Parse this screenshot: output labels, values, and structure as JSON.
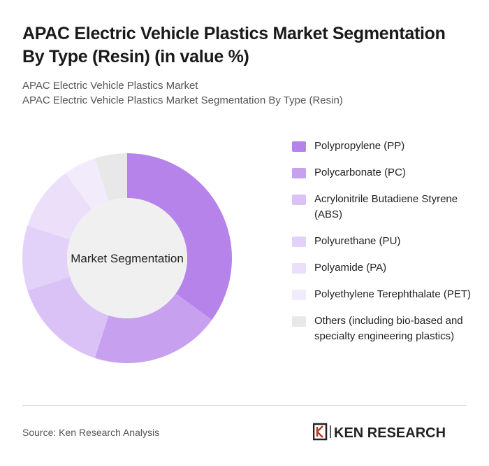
{
  "chart_data": {
    "type": "donut",
    "title": "APAC Electric Vehicle Plastics Market Segmentation By Type (Resin) (in value %)",
    "subtitle": [
      "APAC Electric Vehicle Plastics Market",
      "APAC Electric Vehicle Plastics Market Segmentation By Type (Resin)"
    ],
    "center_label": "Market Segmentation",
    "categories": [
      "Polypropylene (PP)",
      "Polycarbonate (PC)",
      "Acrylonitrile Butadiene Styrene (ABS)",
      "Polyurethane (PU)",
      "Polyamide (PA)",
      "Polyethylene Terephthalate (PET)",
      "Others (including bio-based and specialty engineering plastics)"
    ],
    "values": [
      35,
      20,
      15,
      10,
      10,
      5,
      5
    ],
    "colors": [
      "#b583ea",
      "#c7a0f0",
      "#dac2f6",
      "#e2d1f8",
      "#ebdffa",
      "#f2ebfc",
      "#e8e8e8"
    ],
    "source": "Source: Ken Research Analysis",
    "logo": "KEN RESEARCH"
  }
}
